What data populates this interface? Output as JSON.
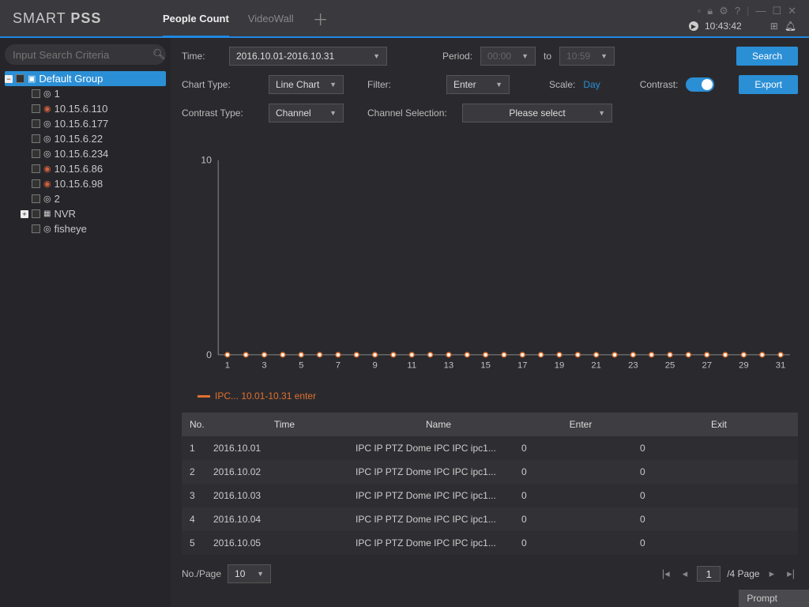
{
  "brand": {
    "p1": "SMART",
    "p2": "PSS"
  },
  "tabs": {
    "peopleCount": "People Count",
    "videoWall": "VideoWall"
  },
  "clock": "10:43:42",
  "sidebar": {
    "searchPlaceholder": "Input Search Criteria",
    "root": "Default Group",
    "items": [
      {
        "label": "1",
        "icon": "cam"
      },
      {
        "label": "10.15.6.110",
        "icon": "warn"
      },
      {
        "label": "10.15.6.177",
        "icon": "cam"
      },
      {
        "label": "10.15.6.22",
        "icon": "cam"
      },
      {
        "label": "10.15.6.234",
        "icon": "cam"
      },
      {
        "label": "10.15.6.86",
        "icon": "warn"
      },
      {
        "label": "10.15.6.98",
        "icon": "warn"
      },
      {
        "label": "2",
        "icon": "cam"
      }
    ],
    "nvr": "NVR",
    "fisheye": "fisheye"
  },
  "filters": {
    "timeLabel": "Time:",
    "timeValue": "2016.10.01-2016.10.31",
    "periodLabel": "Period:",
    "periodFrom": "00:00",
    "to": "to",
    "periodTo": "10:59",
    "searchBtn": "Search",
    "chartTypeLabel": "Chart Type:",
    "chartType": "Line Chart",
    "filterLabel": "Filter:",
    "filter": "Enter",
    "scaleLabel": "Scale:",
    "scale": "Day",
    "contrastLabel": "Contrast:",
    "exportBtn": "Export",
    "contrastTypeLabel": "Contrast Type:",
    "contrastType": "Channel",
    "channelSelLabel": "Channel Selection:",
    "channelSel": "Please select"
  },
  "chart": {
    "yMax": 10,
    "yMin": 0,
    "yTicks": [
      0,
      10
    ],
    "xTicks": [
      1,
      2,
      3,
      4,
      5,
      6,
      7,
      8,
      9,
      10,
      11,
      12,
      13,
      14,
      15,
      16,
      17,
      18,
      19,
      20,
      21,
      22,
      23,
      24,
      25,
      26,
      27,
      28,
      29,
      30,
      31
    ],
    "xLabels": [
      1,
      3,
      5,
      7,
      9,
      11,
      13,
      15,
      17,
      19,
      21,
      23,
      25,
      27,
      29,
      31
    ],
    "series": {
      "color": "#e07030",
      "points": [
        0,
        0,
        0,
        0,
        0,
        0,
        0,
        0,
        0,
        0,
        0,
        0,
        0,
        0,
        0,
        0,
        0,
        0,
        0,
        0,
        0,
        0,
        0,
        0,
        0,
        0,
        0,
        0,
        0,
        0,
        0
      ]
    },
    "legend": "IPC... 10.01-10.31 enter",
    "axisColor": "#888",
    "textColor": "#c0c0c0",
    "bg": "#2a2a2e"
  },
  "table": {
    "headers": {
      "no": "No.",
      "time": "Time",
      "name": "Name",
      "enter": "Enter",
      "exit": "Exit"
    },
    "rows": [
      {
        "no": "1",
        "time": "2016.10.01",
        "name": "IPC IP PTZ Dome IPC IPC ipc1...",
        "enter": "0",
        "exit": "0"
      },
      {
        "no": "2",
        "time": "2016.10.02",
        "name": "IPC IP PTZ Dome IPC IPC ipc1...",
        "enter": "0",
        "exit": "0"
      },
      {
        "no": "3",
        "time": "2016.10.03",
        "name": "IPC IP PTZ Dome IPC IPC ipc1...",
        "enter": "0",
        "exit": "0"
      },
      {
        "no": "4",
        "time": "2016.10.04",
        "name": "IPC IP PTZ Dome IPC IPC ipc1...",
        "enter": "0",
        "exit": "0"
      },
      {
        "no": "5",
        "time": "2016.10.05",
        "name": "IPC IP PTZ Dome IPC IPC ipc1...",
        "enter": "0",
        "exit": "0"
      }
    ]
  },
  "pager": {
    "perPageLabel": "No./Page",
    "perPage": "10",
    "current": "1",
    "totalText": "/4 Page"
  },
  "prompt": "Prompt"
}
